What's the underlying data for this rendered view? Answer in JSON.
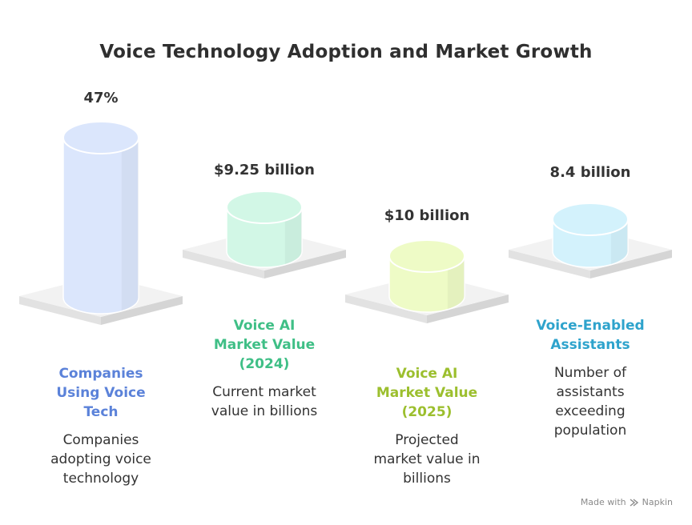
{
  "chart_data": {
    "type": "bar",
    "style": "3d-cylinder-infographic",
    "title": "Voice Technology Adoption and Market Growth",
    "categories": [
      "Companies Using Voice Tech",
      "Voice AI Market Value (2024)",
      "Voice AI Market Value (2025)",
      "Voice-Enabled Assistants"
    ],
    "values": [
      47,
      9.25,
      10,
      8.4
    ],
    "items": [
      {
        "value_label": "47%",
        "category_lines": [
          "Companies",
          "Using Voice",
          "Tech"
        ],
        "desc_lines": [
          "Companies",
          "adopting voice",
          "technology"
        ],
        "color": "#5b82d9",
        "fill": "#dbe6fc"
      },
      {
        "value_label": "$9.25 billion",
        "category_lines": [
          "Voice AI",
          "Market Value",
          "(2024)"
        ],
        "desc_lines": [
          "Current market",
          "value in billions"
        ],
        "color": "#3fbf86",
        "fill": "#d2f7e6"
      },
      {
        "value_label": "$10 billion",
        "category_lines": [
          "Voice AI",
          "Market Value",
          "(2025)"
        ],
        "desc_lines": [
          "Projected",
          "market value in",
          "billions"
        ],
        "color": "#9cbf2e",
        "fill": "#eefbc6"
      },
      {
        "value_label": "8.4 billion",
        "category_lines": [
          "Voice-Enabled",
          "Assistants"
        ],
        "desc_lines": [
          "Number of",
          "assistants",
          "exceeding",
          "population"
        ],
        "color": "#2ea3cc",
        "fill": "#d3f2fc"
      }
    ]
  },
  "watermark": {
    "made_with": "Made with",
    "brand": "Napkin",
    "brand_icon": "napkin-logo-icon"
  }
}
